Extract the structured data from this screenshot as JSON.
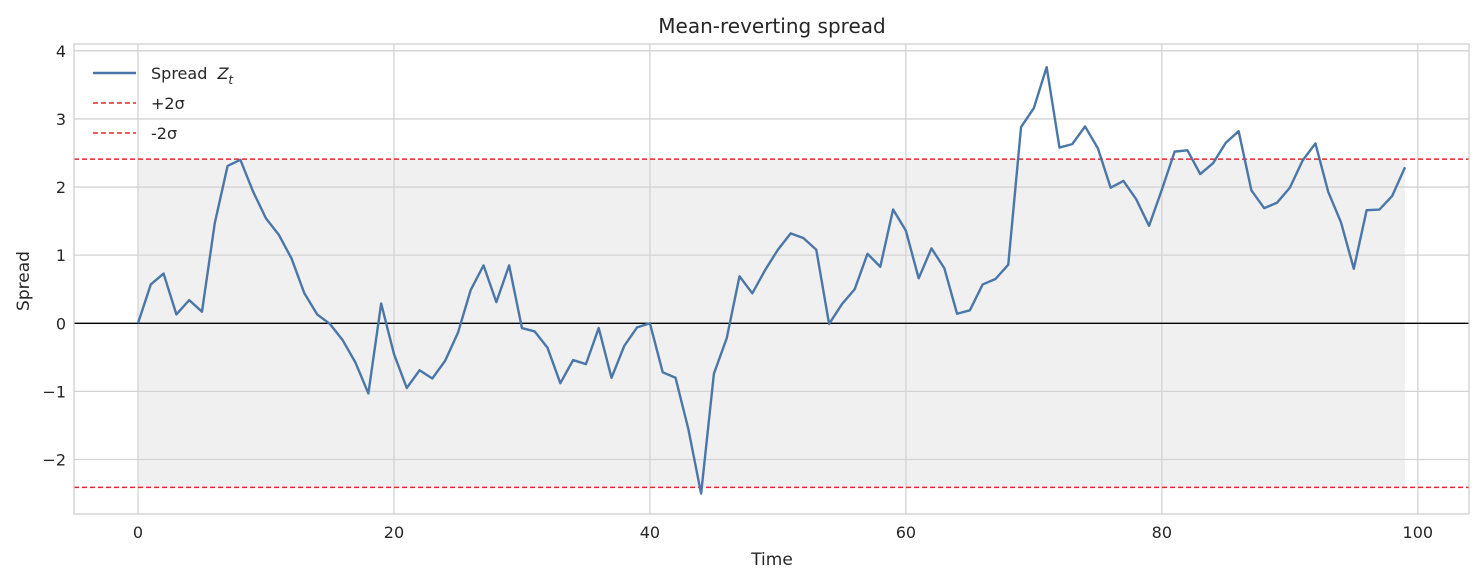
{
  "chart_data": {
    "type": "line",
    "title": "Mean-reverting spread",
    "xlabel": "Time",
    "ylabel": "Spread",
    "xlim": [
      -5,
      104
    ],
    "ylim": [
      -2.8,
      4.1
    ],
    "xticks": [
      0,
      20,
      40,
      60,
      80,
      100
    ],
    "yticks": [
      -2,
      -1,
      0,
      1,
      2,
      3,
      4
    ],
    "ytick_labels": [
      "−2",
      "−1",
      "0",
      "1",
      "2",
      "3",
      "4"
    ],
    "grid": true,
    "legend_position": "top-left",
    "band": {
      "lower": -2.41,
      "upper": 2.41,
      "x_start": 0,
      "x_end": 99
    },
    "zero_line": 0,
    "series": [
      {
        "name": "Spread",
        "name_italic": "Z",
        "name_subscript": "t",
        "color": "#4a76a8",
        "style": "solid",
        "x": [
          0,
          1,
          2,
          3,
          4,
          5,
          6,
          7,
          8,
          9,
          10,
          11,
          12,
          13,
          14,
          15,
          16,
          17,
          18,
          19,
          20,
          21,
          22,
          23,
          24,
          25,
          26,
          27,
          28,
          29,
          30,
          31,
          32,
          33,
          34,
          35,
          36,
          37,
          38,
          39,
          40,
          41,
          42,
          43,
          44,
          45,
          46,
          47,
          48,
          49,
          50,
          51,
          52,
          53,
          54,
          55,
          56,
          57,
          58,
          59,
          60,
          61,
          62,
          63,
          64,
          65,
          66,
          67,
          68,
          69,
          70,
          71,
          72,
          73,
          74,
          75,
          76,
          77,
          78,
          79,
          80,
          81,
          82,
          83,
          84,
          85,
          86,
          87,
          88,
          89,
          90,
          91,
          92,
          93,
          94,
          95,
          96,
          97,
          98,
          99
        ],
        "values": [
          0.0,
          0.57,
          0.73,
          0.13,
          0.34,
          0.17,
          1.47,
          2.31,
          2.4,
          1.93,
          1.54,
          1.3,
          0.95,
          0.44,
          0.13,
          -0.01,
          -0.25,
          -0.58,
          -1.03,
          0.29,
          -0.45,
          -0.95,
          -0.69,
          -0.81,
          -0.55,
          -0.14,
          0.49,
          0.85,
          0.31,
          0.85,
          -0.07,
          -0.12,
          -0.36,
          -0.88,
          -0.54,
          -0.6,
          -0.07,
          -0.8,
          -0.33,
          -0.06,
          0.0,
          -0.72,
          -0.8,
          -1.55,
          -2.5,
          -0.74,
          -0.22,
          0.69,
          0.44,
          0.78,
          1.08,
          1.32,
          1.25,
          1.08,
          -0.01,
          0.28,
          0.5,
          1.02,
          0.83,
          1.67,
          1.36,
          0.66,
          1.1,
          0.81,
          0.14,
          0.19,
          0.57,
          0.65,
          0.86,
          2.88,
          3.16,
          3.76,
          2.58,
          2.63,
          2.89,
          2.57,
          1.99,
          2.09,
          1.82,
          1.43,
          1.96,
          2.52,
          2.54,
          2.19,
          2.35,
          2.65,
          2.82,
          1.95,
          1.69,
          1.77,
          1.99,
          2.39,
          2.64,
          1.93,
          1.48,
          0.8,
          1.66,
          1.67,
          1.87,
          2.29
        ]
      },
      {
        "name": "+2σ",
        "color": "#e8262a",
        "style": "dashed",
        "value": 2.41
      },
      {
        "name": "-2σ",
        "color": "#e8262a",
        "style": "dashed",
        "value": -2.41
      }
    ]
  }
}
